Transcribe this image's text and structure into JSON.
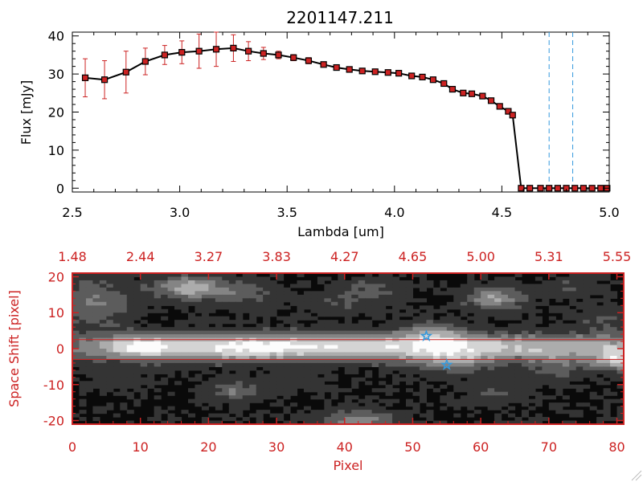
{
  "title": "2201147.211",
  "chart_data": [
    {
      "type": "line",
      "title": "2201147.211",
      "xlabel": "Lambda [um]",
      "ylabel": "Flux [mJy]",
      "xlim": [
        2.5,
        5.0
      ],
      "ylim": [
        -1,
        41
      ],
      "x_ticks": [
        "2.5",
        "3.0",
        "3.5",
        "4.0",
        "4.5",
        "5.0"
      ],
      "y_ticks": [
        "0",
        "10",
        "20",
        "30",
        "40"
      ],
      "line_color": "#000000",
      "marker_color": "#cc2222",
      "errorbar_color": "#cc2222",
      "marker_edge_color": "#000000",
      "vline_color": "#3399dd",
      "vlines": [
        4.72,
        4.83
      ],
      "series": [
        {
          "name": "flux",
          "x": [
            2.56,
            2.65,
            2.75,
            2.84,
            2.93,
            3.01,
            3.09,
            3.17,
            3.25,
            3.32,
            3.39,
            3.46,
            3.53,
            3.6,
            3.67,
            3.73,
            3.79,
            3.85,
            3.91,
            3.97,
            4.02,
            4.08,
            4.13,
            4.18,
            4.23,
            4.27,
            4.32,
            4.36,
            4.41,
            4.45,
            4.49,
            4.53,
            4.55,
            4.59,
            4.63,
            4.68,
            4.72,
            4.76,
            4.8,
            4.84,
            4.88,
            4.92,
            4.96,
            4.99
          ],
          "y": [
            29,
            28.5,
            30.5,
            33.3,
            35,
            35.7,
            36,
            36.5,
            36.8,
            36,
            35.4,
            35,
            34.3,
            33.5,
            32.5,
            31.7,
            31.2,
            30.8,
            30.6,
            30.4,
            30.2,
            29.5,
            29.2,
            28.5,
            27.5,
            26,
            25,
            24.8,
            24.2,
            23,
            21.5,
            20.2,
            19.2,
            0,
            0,
            0,
            0,
            0,
            0,
            0,
            0,
            0,
            0,
            0
          ],
          "yerr": [
            5,
            5,
            5.5,
            3.5,
            2.5,
            3,
            4.5,
            4.5,
            3.5,
            2.5,
            1.6,
            1,
            0.8,
            0.8,
            0.5,
            0.5,
            0.5,
            0.5,
            0.5,
            0.5,
            0.5,
            0.5,
            0.5,
            0.5,
            0.5,
            0.5,
            0.5,
            0.5,
            0.5,
            0.5,
            0.5,
            0.5,
            0.5,
            0,
            0,
            0,
            0,
            0,
            0,
            0,
            0,
            0,
            0,
            0
          ]
        }
      ]
    },
    {
      "type": "heatmap",
      "xlabel": "Pixel",
      "ylabel": "Space Shift [pixel]",
      "xlim": [
        0,
        81
      ],
      "ylim": [
        -21,
        21
      ],
      "x_ticks": [
        "0",
        "10",
        "20",
        "30",
        "40",
        "50",
        "60",
        "70",
        "80"
      ],
      "y_ticks": [
        "-20",
        "-10",
        "0",
        "10",
        "20"
      ],
      "top_ticks": [
        "1.48",
        "2.44",
        "3.27",
        "3.83",
        "4.27",
        "4.65",
        "5.00",
        "5.31",
        "5.55"
      ],
      "axis_color": "#cc2222",
      "trace_lines_y": [
        2.5,
        -3
      ],
      "star_color": "#3399dd",
      "stars": [
        {
          "x": 52,
          "y": 3.5
        },
        {
          "x": 55,
          "y": -4.5
        }
      ],
      "blobs": [
        {
          "x": 44,
          "y": 0.5,
          "sx": 36,
          "sy": 2.6,
          "a": 0.8
        },
        {
          "x": 10,
          "y": 0.5,
          "sx": 3.5,
          "sy": 2.2,
          "a": 0.45
        },
        {
          "x": 25,
          "y": 0,
          "sx": 8,
          "sy": 2.4,
          "a": 0.25
        },
        {
          "x": 53,
          "y": 4,
          "sx": 3.5,
          "sy": 2.5,
          "a": 0.35
        },
        {
          "x": 56,
          "y": -3.5,
          "sx": 4.5,
          "sy": 2.5,
          "a": 0.35
        },
        {
          "x": 80,
          "y": -3,
          "sx": 2.5,
          "sy": 2.2,
          "a": 0.6
        },
        {
          "x": 17,
          "y": 17,
          "sx": 3.5,
          "sy": 2.2,
          "a": 0.6
        },
        {
          "x": 25,
          "y": 15,
          "sx": 4,
          "sy": 3,
          "a": 0.25
        },
        {
          "x": 3,
          "y": 13,
          "sx": 4,
          "sy": 5,
          "a": 0.35
        },
        {
          "x": 62,
          "y": 14,
          "sx": 3,
          "sy": 2.2,
          "a": 0.55
        },
        {
          "x": 44,
          "y": 16,
          "sx": 4,
          "sy": 2.5,
          "a": 0.25
        },
        {
          "x": 38,
          "y": 12,
          "sx": 3,
          "sy": 2,
          "a": 0.18
        },
        {
          "x": 73,
          "y": 17,
          "sx": 3,
          "sy": 2,
          "a": 0.2
        },
        {
          "x": 71,
          "y": -5,
          "sx": 3,
          "sy": 3,
          "a": 0.25
        },
        {
          "x": 24,
          "y": -12,
          "sx": 2.5,
          "sy": 2,
          "a": 0.35
        },
        {
          "x": 42,
          "y": -20,
          "sx": 4,
          "sy": 2,
          "a": 0.45
        },
        {
          "x": 33,
          "y": -9,
          "sx": 3,
          "sy": 2,
          "a": 0.15
        },
        {
          "x": 62,
          "y": -12,
          "sx": 3,
          "sy": 2.5,
          "a": 0.18
        },
        {
          "x": 78,
          "y": 8,
          "sx": 2.5,
          "sy": 3,
          "a": 0.2
        },
        {
          "x": 6,
          "y": -8,
          "sx": 3,
          "sy": 2.5,
          "a": 0.15
        }
      ]
    }
  ]
}
